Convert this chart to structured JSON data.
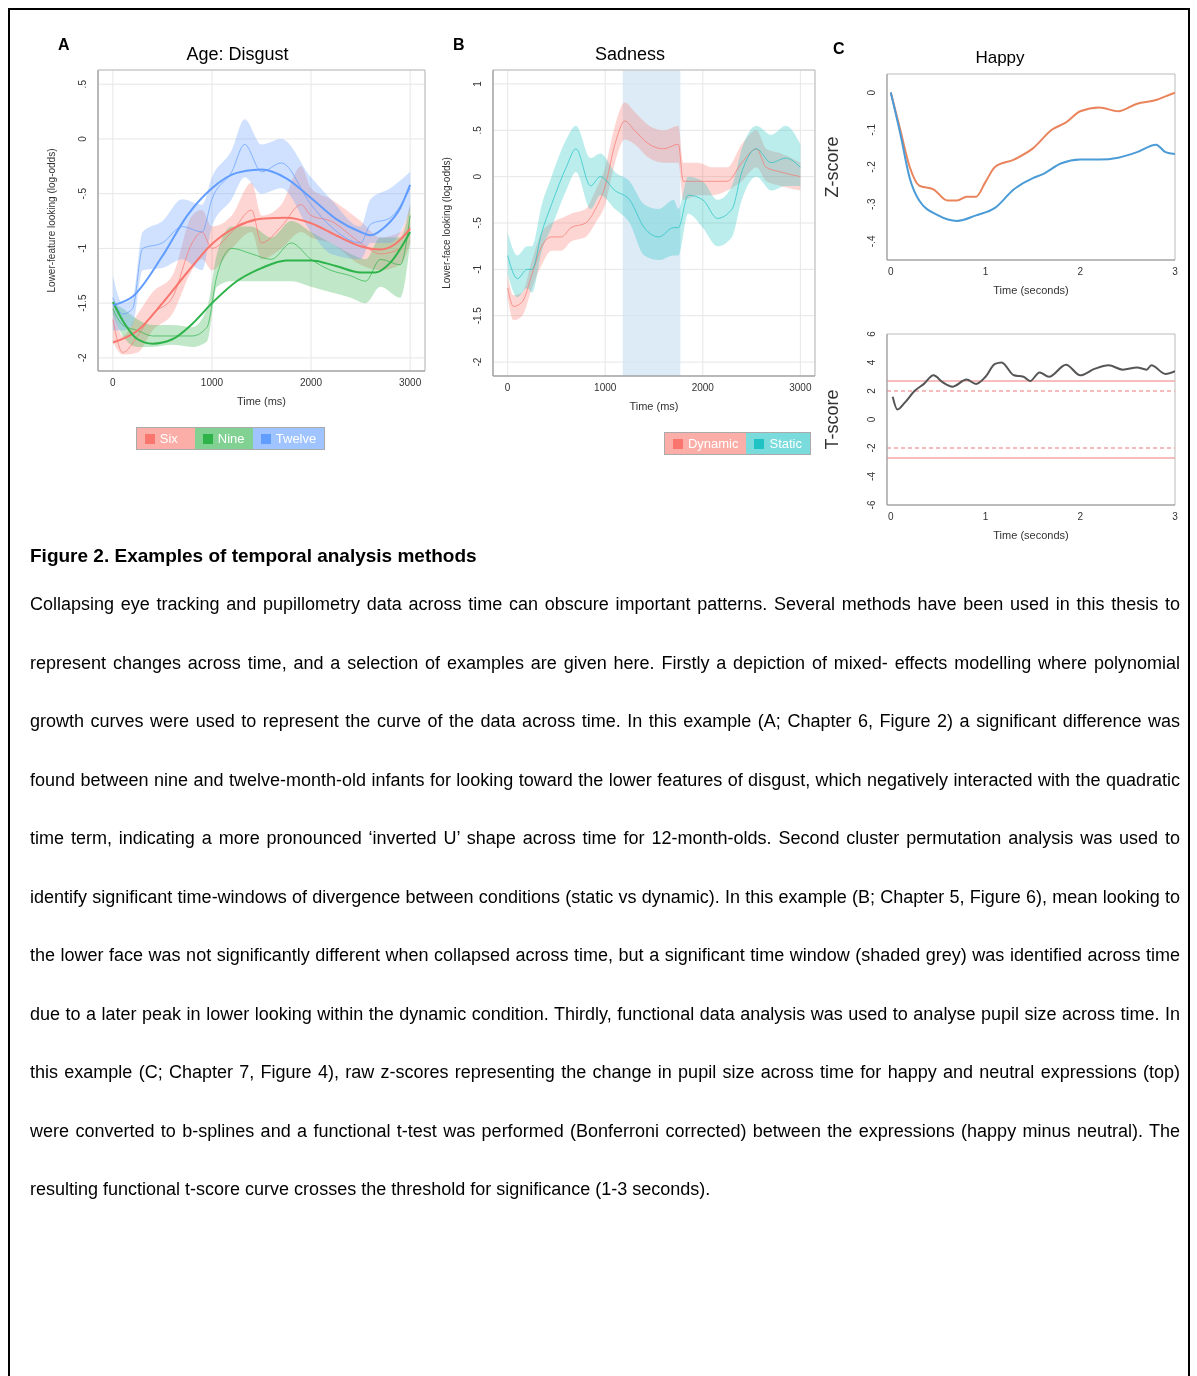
{
  "chart_data": [
    {
      "type": "line",
      "title": "Age: Disgust",
      "annotations": [
        "A"
      ],
      "xlabel": "Time (ms)",
      "ylabel": "Lower-feature looking (log-odds)",
      "xlim": [
        -150,
        3150
      ],
      "ylim": [
        -2.12,
        0.63
      ],
      "xticks": [
        0,
        1000,
        2000,
        3000
      ],
      "yticks": [
        {
          "value": 0.5,
          "label": ".5"
        },
        0,
        {
          "value": -0.5,
          "label": "-.5"
        },
        -1,
        -1.5,
        -2
      ],
      "grid": true,
      "legend": "bottom",
      "marker": "none",
      "line_style": "solid",
      "series": [
        {
          "name": "Six",
          "color": "#f8766d",
          "x": [
            0,
            100,
            250,
            400,
            600,
            800,
            900,
            1000,
            1200,
            1400,
            1500,
            1700,
            1900,
            2000,
            2200,
            2500,
            2700,
            2900,
            3000
          ],
          "values": [
            -1.65,
            -1.95,
            -1.8,
            -1.6,
            -1.45,
            -0.95,
            -0.85,
            -1.0,
            -0.85,
            -0.65,
            -0.95,
            -0.8,
            -0.6,
            -0.7,
            -0.75,
            -0.95,
            -1.05,
            -1.0,
            -0.8
          ],
          "lower": [
            -1.85,
            -1.97,
            -1.95,
            -1.75,
            -1.6,
            -1.2,
            -1.1,
            -1.2,
            -1.0,
            -0.85,
            -1.1,
            -1.0,
            -0.85,
            -0.9,
            -0.95,
            -1.15,
            -1.2,
            -1.15,
            -0.95
          ],
          "upper": [
            -1.5,
            -1.8,
            -1.6,
            -1.4,
            -1.25,
            -0.7,
            -0.65,
            -0.8,
            -0.7,
            -0.4,
            -0.7,
            -0.6,
            -0.25,
            -0.45,
            -0.55,
            -0.75,
            -0.9,
            -0.85,
            -0.6
          ]
        },
        {
          "name": "Nine",
          "color": "#2db34a",
          "x": [
            0,
            100,
            250,
            400,
            600,
            800,
            950,
            1050,
            1200,
            1400,
            1600,
            1800,
            2000,
            2200,
            2400,
            2550,
            2700,
            2900,
            3000
          ],
          "values": [
            -1.55,
            -1.7,
            -1.75,
            -1.8,
            -1.8,
            -1.8,
            -1.72,
            -1.25,
            -1.0,
            -1.05,
            -1.1,
            -0.95,
            -1.1,
            -1.2,
            -1.25,
            -1.3,
            -1.1,
            -1.15,
            -0.7
          ],
          "lower": [
            -1.6,
            -1.8,
            -1.9,
            -1.9,
            -1.88,
            -1.9,
            -1.85,
            -1.35,
            -1.3,
            -1.3,
            -1.3,
            -1.3,
            -1.35,
            -1.4,
            -1.45,
            -1.5,
            -1.35,
            -1.45,
            -0.95
          ],
          "upper": [
            -1.5,
            -1.55,
            -1.65,
            -1.7,
            -1.7,
            -1.72,
            -1.55,
            -1.05,
            -0.8,
            -0.8,
            -0.9,
            -0.75,
            -0.85,
            -0.95,
            -1.05,
            -1.1,
            -0.9,
            -0.9,
            -0.6
          ]
        },
        {
          "name": "Twelve",
          "color": "#619cff",
          "x": [
            0,
            100,
            200,
            300,
            500,
            700,
            900,
            1000,
            1200,
            1330,
            1500,
            1700,
            2000,
            2200,
            2500,
            2600,
            2800,
            3000
          ],
          "values": [
            -1.45,
            -1.6,
            -1.55,
            -1.0,
            -0.95,
            -0.8,
            -0.85,
            -0.55,
            -0.3,
            -0.05,
            -0.3,
            -0.22,
            -0.6,
            -0.8,
            -0.95,
            -0.78,
            -0.72,
            -0.45
          ],
          "lower": [
            -1.75,
            -1.75,
            -1.7,
            -1.2,
            -1.18,
            -1.1,
            -1.2,
            -0.8,
            -0.55,
            -0.35,
            -0.5,
            -0.45,
            -0.85,
            -1.05,
            -1.1,
            -0.95,
            -0.95,
            -0.65
          ],
          "upper": [
            -1.25,
            -1.5,
            -1.45,
            -0.85,
            -0.75,
            -0.55,
            -0.6,
            -0.35,
            -0.1,
            0.18,
            -0.05,
            0.0,
            -0.35,
            -0.55,
            -0.8,
            -0.55,
            -0.45,
            -0.3
          ]
        },
        {
          "type": "line",
          "color": "#f8766d",
          "x": [
            0,
            250,
            500,
            750,
            1000,
            1250,
            1500,
            1750,
            2000,
            2250,
            2500,
            2700,
            2850,
            3000
          ],
          "values": [
            -1.86,
            -1.75,
            -1.5,
            -1.22,
            -0.96,
            -0.8,
            -0.73,
            -0.72,
            -0.77,
            -0.88,
            -0.98,
            -1.01,
            -0.96,
            -0.82
          ]
        },
        {
          "type": "line",
          "color": "#2db34a",
          "x": [
            0,
            100,
            250,
            400,
            600,
            800,
            1000,
            1250,
            1500,
            1750,
            2000,
            2250,
            2500,
            2650,
            2800,
            3000
          ],
          "values": [
            -1.49,
            -1.66,
            -1.83,
            -1.87,
            -1.83,
            -1.69,
            -1.5,
            -1.3,
            -1.18,
            -1.11,
            -1.11,
            -1.16,
            -1.22,
            -1.22,
            -1.13,
            -0.85
          ]
        },
        {
          "type": "line",
          "color": "#619cff",
          "x": [
            0,
            200,
            500,
            750,
            1000,
            1250,
            1500,
            1750,
            2000,
            2250,
            2500,
            2600,
            2750,
            2900,
            3000
          ],
          "values": [
            -1.52,
            -1.44,
            -1.07,
            -0.7,
            -0.45,
            -0.31,
            -0.28,
            -0.36,
            -0.54,
            -0.73,
            -0.85,
            -0.88,
            -0.8,
            -0.63,
            -0.42
          ]
        }
      ]
    },
    {
      "type": "line",
      "title": "Sadness",
      "annotations": [
        "B"
      ],
      "xlabel": "Time (ms)",
      "ylabel": "Lower-face looking (log-odds)",
      "xlim": [
        -150,
        3150
      ],
      "ylim": [
        -2.15,
        1.15
      ],
      "xticks": [
        0,
        1000,
        2000,
        3000
      ],
      "yticks": [
        1,
        {
          "value": 0.5,
          "label": ".5"
        },
        0,
        {
          "value": -0.5,
          "label": "-.5"
        },
        -1,
        -1.5,
        -2
      ],
      "grid": true,
      "legend": "bottom right",
      "marker": "none",
      "line_style": "solid",
      "bands": [
        {
          "axis": "x",
          "from": 1180,
          "to": 1770,
          "color": "#cfe2f3"
        }
      ],
      "series": [
        {
          "name": "Dynamic",
          "color": "#f8766d",
          "x": [
            0,
            60,
            150,
            250,
            350,
            450,
            550,
            650,
            800,
            900,
            1000,
            1100,
            1200,
            1300,
            1450,
            1600,
            1750,
            1800,
            1950,
            2100,
            2250,
            2400,
            2550,
            2650,
            2800,
            3000
          ],
          "values": [
            -1.2,
            -1.4,
            -1.35,
            -1.05,
            -0.75,
            -0.65,
            -0.65,
            -0.55,
            -0.5,
            -0.35,
            -0.1,
            0.35,
            0.6,
            0.5,
            0.35,
            0.3,
            0.35,
            -0.05,
            -0.05,
            -0.05,
            -0.05,
            0.15,
            0.3,
            0.1,
            0.05,
            0.0
          ],
          "lower": [
            -1.3,
            -1.55,
            -1.5,
            -1.2,
            -0.95,
            -0.8,
            -0.8,
            -0.7,
            -0.65,
            -0.5,
            -0.3,
            0.15,
            0.4,
            0.35,
            0.2,
            0.15,
            0.15,
            -0.25,
            -0.2,
            -0.2,
            -0.15,
            -0.05,
            0.1,
            -0.05,
            -0.1,
            -0.15
          ],
          "upper": [
            -1.05,
            -1.28,
            -1.25,
            -0.9,
            -0.6,
            -0.5,
            -0.45,
            -0.4,
            -0.35,
            -0.15,
            0.1,
            0.55,
            0.8,
            0.7,
            0.55,
            0.5,
            0.55,
            0.15,
            0.15,
            0.1,
            0.1,
            0.35,
            0.5,
            0.3,
            0.25,
            0.15
          ]
        },
        {
          "name": "Static",
          "color": "#1fc3c3",
          "x": [
            0,
            100,
            200,
            250,
            350,
            450,
            600,
            700,
            850,
            950,
            1100,
            1250,
            1400,
            1550,
            1700,
            1750,
            1850,
            2000,
            2150,
            2300,
            2400,
            2550,
            2700,
            2850,
            3000
          ],
          "values": [
            -0.85,
            -1.1,
            -1.0,
            -1.0,
            -0.6,
            -0.3,
            0.1,
            0.3,
            -0.1,
            0.0,
            -0.15,
            -0.25,
            -0.55,
            -0.65,
            -0.55,
            -0.55,
            -0.2,
            -0.25,
            -0.45,
            -0.35,
            0.05,
            0.3,
            0.15,
            0.2,
            0.1
          ],
          "lower": [
            -1.05,
            -1.3,
            -1.2,
            -1.25,
            -0.8,
            -0.55,
            -0.15,
            0.05,
            -0.35,
            -0.2,
            -0.35,
            -0.5,
            -0.85,
            -0.9,
            -0.85,
            -0.85,
            -0.4,
            -0.55,
            -0.75,
            -0.65,
            -0.25,
            0.0,
            -0.15,
            -0.1,
            -0.1
          ],
          "upper": [
            -0.6,
            -0.85,
            -0.75,
            -0.75,
            -0.3,
            0.0,
            0.4,
            0.55,
            0.2,
            0.25,
            0.05,
            -0.05,
            -0.3,
            -0.35,
            -0.25,
            -0.35,
            0.0,
            -0.05,
            -0.25,
            -0.1,
            0.3,
            0.55,
            0.45,
            0.55,
            0.35
          ]
        }
      ]
    },
    {
      "type": "line",
      "title": "Happy",
      "annotations": [
        "C"
      ],
      "xlabel": "Time (seconds)",
      "ylabel": "Z-score",
      "xlim": [
        -0.04,
        3.0
      ],
      "ylim": [
        -0.45,
        0.05
      ],
      "xticks": [
        0,
        1,
        2,
        3
      ],
      "yticks": [
        0,
        {
          "value": -0.1,
          "label": "-.1"
        },
        {
          "value": -0.2,
          "label": "-.2"
        },
        {
          "value": -0.3,
          "label": "-.3"
        },
        {
          "value": -0.4,
          "label": "-.4"
        }
      ],
      "marker": "none",
      "line_style": "solid",
      "series": [
        {
          "color": "#e9845c",
          "x": [
            0,
            0.1,
            0.2,
            0.3,
            0.45,
            0.6,
            0.7,
            0.8,
            0.9,
            1.0,
            1.1,
            1.3,
            1.5,
            1.7,
            1.85,
            2.0,
            2.2,
            2.4,
            2.6,
            2.8,
            2.9,
            3.0
          ],
          "values": [
            0,
            -0.1,
            -0.2,
            -0.25,
            -0.26,
            -0.29,
            -0.29,
            -0.28,
            -0.28,
            -0.24,
            -0.2,
            -0.18,
            -0.15,
            -0.1,
            -0.08,
            -0.05,
            -0.04,
            -0.05,
            -0.03,
            -0.02,
            -0.01,
            0.0
          ]
        },
        {
          "color": "#4a9bd6",
          "x": [
            0,
            0.1,
            0.2,
            0.3,
            0.5,
            0.7,
            0.9,
            1.1,
            1.3,
            1.5,
            1.6,
            1.8,
            2.0,
            2.2,
            2.4,
            2.6,
            2.8,
            2.9,
            3.0
          ],
          "values": [
            0,
            -0.11,
            -0.23,
            -0.29,
            -0.33,
            -0.345,
            -0.33,
            -0.31,
            -0.26,
            -0.23,
            -0.22,
            -0.19,
            -0.18,
            -0.18,
            -0.175,
            -0.16,
            -0.14,
            -0.16,
            -0.165
          ]
        }
      ]
    },
    {
      "type": "line",
      "xlabel": "Time (seconds)",
      "ylabel": "T-score",
      "xlim": [
        -0.04,
        3.0
      ],
      "ylim": [
        -6,
        6
      ],
      "xticks": [
        0,
        1,
        2,
        3
      ],
      "yticks": [
        -6,
        -4,
        -2,
        0,
        2,
        4,
        6
      ],
      "marker": "none",
      "line_style": "solid",
      "ref_lines": [
        {
          "axis": "y",
          "value": 2.7,
          "color": "#f4a6a6",
          "line_style": "solid"
        },
        {
          "axis": "y",
          "value": 2,
          "color": "#f4a6a6",
          "line_style": "dashed"
        },
        {
          "axis": "y",
          "value": -2,
          "color": "#f4a6a6",
          "line_style": "dashed"
        },
        {
          "axis": "y",
          "value": -2.7,
          "color": "#f4a6a6",
          "line_style": "solid"
        }
      ],
      "series": [
        {
          "color": "#555555",
          "x": [
            0.02,
            0.07,
            0.15,
            0.25,
            0.35,
            0.45,
            0.55,
            0.65,
            0.8,
            0.9,
            1.0,
            1.1,
            1.17,
            1.3,
            1.4,
            1.47,
            1.57,
            1.67,
            1.85,
            2.0,
            2.15,
            2.3,
            2.45,
            2.6,
            2.7,
            2.75,
            2.9,
            3.0
          ],
          "values": [
            1.6,
            0.7,
            1.2,
            2.0,
            2.5,
            3.1,
            2.6,
            2.3,
            2.8,
            2.5,
            3.0,
            3.9,
            4.0,
            3.1,
            3.0,
            2.7,
            3.3,
            3.0,
            3.85,
            3.1,
            3.55,
            3.8,
            3.5,
            3.65,
            3.5,
            3.8,
            3.2,
            3.4
          ]
        }
      ]
    },
    {
      "type": "other",
      "title": "Figure 2. Examples of temporal analysis methods",
      "annotations": [
        "Collapsing eye tracking and pupillometry data across time can obscure important patterns. Several methods have been used in this thesis to represent changes across time, and a selection of examples are given here. Firstly a depiction of mixed- effects modelling where polynomial growth curves were used to represent the curve of the data across time. In this example (A; Chapter 6, Figure 2) a significant difference was found between nine and twelve-month-old infants for looking toward the lower features of disgust, which negatively interacted with the quadratic time term, indicating a more pronounced ‘inverted U’ shape across time for 12-month-olds. Second cluster permutation analysis was used to identify significant time-windows of divergence between conditions (static vs dynamic). In this example (B; Chapter 5, Figure 6), mean looking to the lower face was not significantly different when collapsed across time, but a significant time window (shaded grey) was identified across time due to a later peak in lower looking within the dynamic condition. Thirdly, functional data analysis was used to analyse pupil size across time. In this example (C; Chapter 7, Figure 4), raw z-scores representing the change in pupil size across time for happy and neutral expressions (top) were converted to b-splines and a functional t-test was performed (Bonferroni corrected) between the expressions (happy minus neutral). The resulting functional t-score curve crosses the threshold for significance (1-3 seconds)."
      ]
    }
  ]
}
